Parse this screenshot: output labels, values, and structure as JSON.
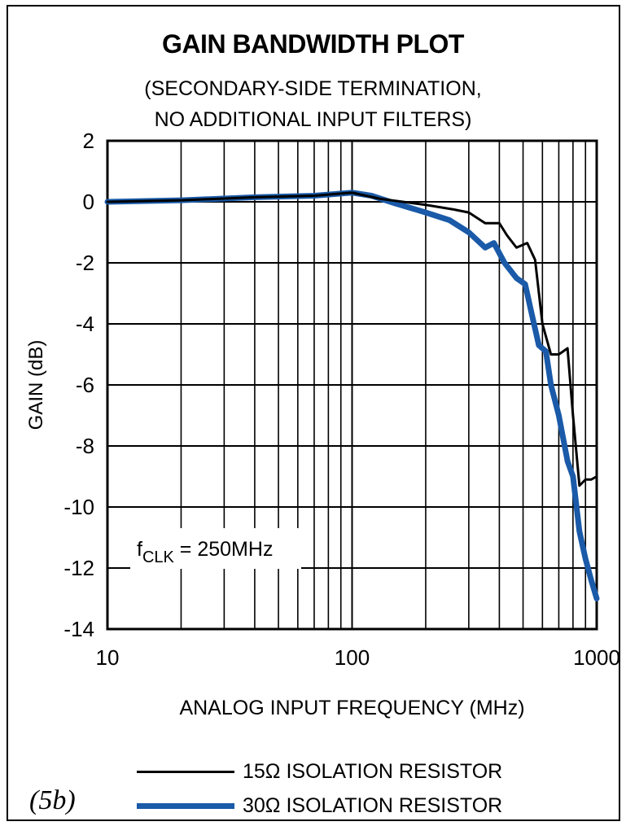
{
  "figure_tag": "(5b)",
  "annotation": {
    "f": "f",
    "sub": "CLK",
    "rest": " = 250MHz"
  },
  "chart_data": {
    "type": "line",
    "title": "GAIN BANDWIDTH PLOT",
    "subtitle": [
      "(SECONDARY-SIDE TERMINATION,",
      "NO ADDITIONAL INPUT FILTERS)"
    ],
    "xlabel": "ANALOG INPUT FREQUENCY (MHz)",
    "ylabel": "GAIN (dB)",
    "xscale": "log",
    "xlim": [
      10,
      1000
    ],
    "ylim": [
      -14,
      2
    ],
    "xticks": [
      10,
      100,
      1000
    ],
    "yticks": [
      2,
      0,
      -2,
      -4,
      -6,
      -8,
      -10,
      -12,
      -14
    ],
    "grid": true,
    "legend_position": "bottom",
    "series": [
      {
        "name": "15Ω ISOLATION RESISTOR",
        "color": "#000000",
        "x": [
          10,
          20,
          40,
          70,
          100,
          130,
          200,
          260,
          300,
          350,
          400,
          430,
          470,
          520,
          560,
          600,
          650,
          700,
          760,
          800,
          850,
          900,
          950,
          1000
        ],
        "y": [
          0,
          0.05,
          0.15,
          0.2,
          0.3,
          0.1,
          -0.1,
          -0.25,
          -0.35,
          -0.7,
          -0.7,
          -1.1,
          -1.5,
          -1.35,
          -1.9,
          -4.0,
          -5.0,
          -5.0,
          -4.8,
          -7.0,
          -9.3,
          -9.1,
          -9.1,
          -9.0
        ]
      },
      {
        "name": "30Ω ISOLATION RESISTOR",
        "color": "#1a5aa8",
        "x": [
          10,
          20,
          40,
          70,
          100,
          120,
          150,
          200,
          250,
          300,
          350,
          380,
          420,
          470,
          510,
          540,
          580,
          620,
          650,
          700,
          760,
          800,
          850,
          900,
          950,
          1000
        ],
        "y": [
          0,
          0.05,
          0.15,
          0.2,
          0.3,
          0.2,
          -0.05,
          -0.35,
          -0.6,
          -1.0,
          -1.5,
          -1.35,
          -2.0,
          -2.5,
          -2.7,
          -3.6,
          -4.7,
          -4.9,
          -6.0,
          -7.0,
          -8.5,
          -9.0,
          -10.8,
          -11.7,
          -12.4,
          -13.0
        ]
      }
    ]
  }
}
